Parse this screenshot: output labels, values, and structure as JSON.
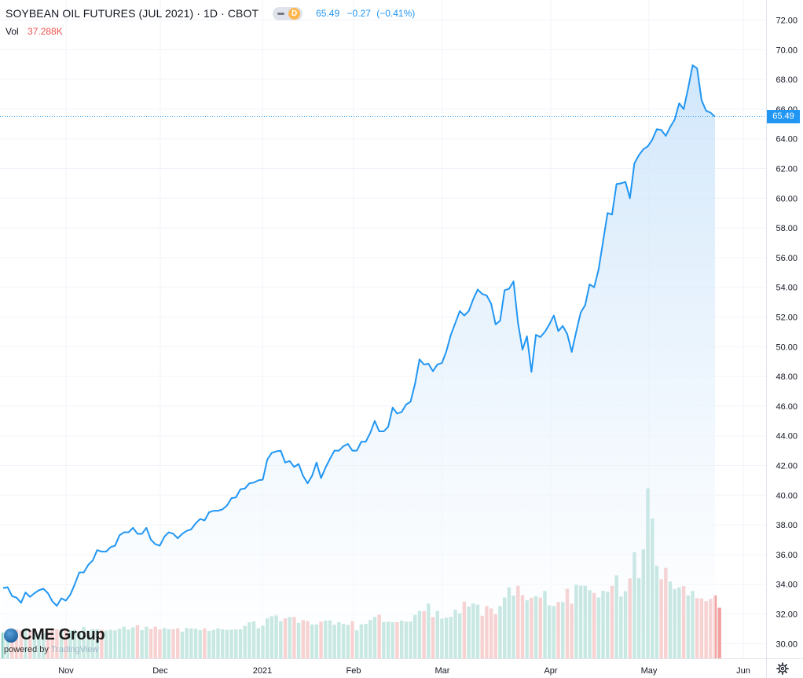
{
  "header": {
    "title": "SOYBEAN OIL FUTURES (JUL 2021) · 1D · CBOT",
    "interval_badge": "D",
    "last": "65.49",
    "change": "−0.27",
    "change_pct": "(−0.41%)"
  },
  "volume": {
    "label": "Vol",
    "value": "37.288K"
  },
  "last_price_tag": "65.49",
  "logo": {
    "brand": "CME Group",
    "powered_by": "powered by",
    "provider": "TradingView"
  },
  "colors": {
    "line": "#2196f3",
    "fill_top": "#cfe5fb",
    "up_volume": "#8fcfc3",
    "down_volume": "#f1a2a1",
    "grid": "#f0f3fa"
  },
  "icons": {
    "settings": "gear-icon",
    "logo": "globe-icon"
  },
  "chart_data": {
    "type": "area",
    "title": "SOYBEAN OIL FUTURES (JUL 2021) · 1D · CBOT",
    "xlabel": "",
    "ylabel": "",
    "ylim": [
      29.2,
      72.8
    ],
    "yticks": [
      "72.00",
      "70.00",
      "68.00",
      "66.00",
      "64.00",
      "62.00",
      "60.00",
      "58.00",
      "56.00",
      "54.00",
      "52.00",
      "50.00",
      "48.00",
      "46.00",
      "44.00",
      "42.00",
      "40.00",
      "38.00",
      "36.00",
      "34.00",
      "32.00",
      "30.00"
    ],
    "xticks": [
      "Nov",
      "Dec",
      "2021",
      "Feb",
      "Mar",
      "Apr",
      "May",
      "Jun"
    ],
    "grid": true,
    "series": [
      {
        "values": [
          33.75,
          33.8,
          33.2,
          33.1,
          32.75,
          33.45,
          33.15,
          33.4,
          33.6,
          33.7,
          33.4,
          32.85,
          32.55,
          33.05,
          32.9,
          33.3,
          34,
          34.8,
          34.8,
          35.3,
          35.6,
          36.3,
          36.2,
          36.2,
          36.5,
          36.6,
          37.3,
          37.5,
          37.5,
          37.8,
          37.4,
          37.4,
          37.8,
          37,
          36.7,
          36.6,
          37.2,
          37.5,
          37.4,
          37.1,
          37.4,
          37.6,
          37.7,
          38.1,
          38.4,
          38.3,
          38.85,
          38.95,
          38.95,
          39.05,
          39.3,
          39.8,
          39.85,
          40.4,
          40.45,
          40.8,
          40.85,
          41,
          41.05,
          42.4,
          42.85,
          42.95,
          43,
          42.2,
          42.3,
          41.9,
          42.1,
          41.3,
          40.8,
          41.3,
          42.2,
          41.15,
          41.85,
          42.45,
          43,
          43,
          43.3,
          43.45,
          43.0,
          43.0,
          43.6,
          43.6,
          44.2,
          45,
          44.3,
          44.3,
          44.6,
          45.9,
          45.5,
          45.6,
          46.1,
          46.3,
          47.5,
          49.15,
          48.8,
          48.85,
          48.35,
          48.8,
          48.9,
          49.7,
          50.8,
          51.6,
          52.4,
          52.1,
          52.4,
          53.2,
          53.85,
          53.55,
          53.45,
          52.9,
          51.5,
          51.75,
          53.8,
          53.9,
          54.4,
          51.6,
          49.8,
          50.7,
          48.3,
          50.8,
          50.65,
          51,
          51.5,
          52.1,
          51.05,
          51.4,
          50.85,
          49.65,
          51,
          52.3,
          52.8,
          54.2,
          54,
          55.2,
          57.1,
          59,
          58.9,
          60.95,
          61.0,
          61.1,
          60,
          62.35,
          62.9,
          63.3,
          63.5,
          63.95,
          64.65,
          64.6,
          64.2,
          64.8,
          65.3,
          66.4,
          66.0,
          67.4,
          68.95,
          68.75,
          66.6,
          65.9,
          65.76,
          65.49
        ]
      },
      {
        "name": "Vol",
        "values": [
          30.74,
          30.7,
          30.96,
          30.96,
          30.9,
          30.92,
          30.91,
          30.71,
          30.65,
          30.7,
          30.82,
          30.92,
          30.96,
          31,
          31.03,
          30.9,
          30.94,
          30.82,
          31.13,
          30.9,
          30.98,
          30.99,
          30.95,
          30.89,
          30.94,
          30.9,
          31,
          31.15,
          30.95,
          31.1,
          31.25,
          30.91,
          31.14,
          30.99,
          31.15,
          30.95,
          31.05,
          30.98,
          30.97,
          31.03,
          30.8,
          31.05,
          31.02,
          31,
          30.91,
          31.03,
          30.86,
          30.93,
          31.03,
          30.96,
          30.93,
          30.95,
          30.96,
          30.97,
          31.2,
          31.44,
          31.5,
          31.05,
          31.21,
          31.7,
          31.85,
          31.9,
          31.52,
          31.7,
          31.8,
          31.8,
          31.4,
          31.59,
          31.52,
          31.3,
          31.3,
          31.48,
          31.55,
          31.57,
          31.27,
          31.44,
          31.32,
          31.27,
          31.52,
          30.9,
          31.3,
          31.34,
          31.59,
          31.8,
          31.95,
          31.46,
          31.48,
          31.45,
          31.45,
          31.55,
          31.48,
          31.49,
          31.94,
          32.2,
          32.2,
          32.7,
          31.79,
          32.2,
          31.69,
          31.75,
          31.81,
          32.28,
          32.05,
          32.83,
          32.5,
          32.7,
          32.63,
          31.88,
          32.53,
          32.37,
          31.99,
          32.53,
          33.11,
          33.79,
          33.24,
          33.9,
          33.26,
          32.92,
          33.09,
          33.2,
          33.1,
          33.55,
          32.58,
          32.53,
          32.81,
          32.8,
          33.7,
          32.69,
          33.97,
          33.9,
          33.9,
          33.6,
          33.42,
          33.11,
          33.56,
          33.5,
          33.89,
          34.6,
          33.17,
          33.53,
          34.4,
          36.16,
          34.41,
          36.35,
          40.46,
          38.43,
          35.25,
          34.34,
          35.11,
          34.18,
          33.67,
          33.79,
          33.88,
          33.25,
          33.55,
          33.07,
          33.05,
          32.86,
          33.01,
          33.25,
          32.42
        ]
      }
    ],
    "last_value": 65.49
  }
}
